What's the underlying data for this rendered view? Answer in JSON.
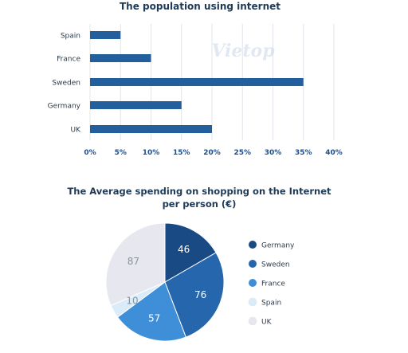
{
  "chart_data": [
    {
      "type": "bar",
      "orientation": "horizontal",
      "title": "The population using internet",
      "categories": [
        "Spain",
        "France",
        "Sweden",
        "Germany",
        "UK"
      ],
      "values": [
        5,
        10,
        35,
        15,
        20
      ],
      "xlim": [
        0,
        40
      ],
      "xticks": [
        "0%",
        "5%",
        "10%",
        "15%",
        "20%",
        "25%",
        "30%",
        "35%",
        "40%"
      ],
      "grid": true,
      "bar_color": "#235f9c"
    },
    {
      "type": "pie",
      "title_lines": [
        "The Average spending on shopping on the Internet",
        "per person (€)"
      ],
      "categories": [
        "Germany",
        "Sweden",
        "France",
        "Spain",
        "UK"
      ],
      "values": [
        46,
        76,
        57,
        10,
        87
      ],
      "colors": [
        "#1a4a84",
        "#2666ad",
        "#3e8fd8",
        "#d9ecf8",
        "#e7e8ef"
      ],
      "label_colors": [
        "#ffffff",
        "#ffffff",
        "#ffffff",
        "#8a93a3",
        "#8a93a3"
      ],
      "legend": "right"
    }
  ],
  "watermark": "Vietop"
}
